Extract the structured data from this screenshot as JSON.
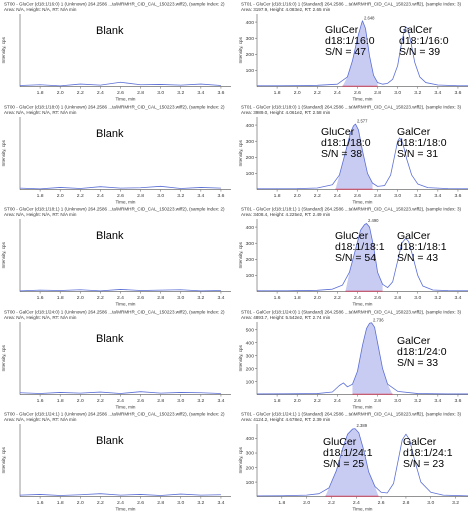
{
  "colors": {
    "trace": "#5b6fd6",
    "fill": "#c9ccf2",
    "baseline": "#e0405a",
    "axis": "#555555",
    "tick_label": "#333333"
  },
  "chart_data": [
    {
      "type": "line",
      "panel": "blank",
      "row": 0,
      "header_line1": "ST00 - GluCer (d18:1/16:0) 1 (Unknown) 264.2586 ...ta\\MRMHR_CID_CAL_150223.wiff2), (sample Index: 2)",
      "header_line2": "Area: N/A, Height: N/A, RT: N/A min",
      "xlabel": "Time, min",
      "ylabel": "Intensity, cps",
      "xlim": [
        1.6,
        3.7
      ],
      "ylim": [
        0,
        1000
      ],
      "xticks": [
        1.8,
        2.0,
        2.2,
        2.4,
        2.6,
        2.8,
        3.0,
        3.2,
        3.4,
        3.6
      ],
      "yticks": [],
      "blank_text": "Blank",
      "x": [
        1.6,
        1.8,
        2.0,
        2.2,
        2.4,
        2.6,
        2.8,
        3.0,
        3.2,
        3.4,
        3.6
      ],
      "y": [
        15,
        25,
        10,
        35,
        20,
        60,
        25,
        30,
        20,
        35,
        15
      ],
      "peaks": []
    },
    {
      "type": "line",
      "panel": "sample",
      "row": 0,
      "header_line1": "ST01 - GluCer (d18:1/16:0) 1 (Standard) 264.2586 ...ta\\MRMHR_CID_CAL_150223.wiff2), (sample Index: 3)",
      "header_line2": "Area: 3197.9, Height: 4.083e2, RT: 2.65 min",
      "xlabel": "Time, min",
      "ylabel": "Intensity, cps",
      "xlim": [
        1.6,
        3.7
      ],
      "ylim": [
        0,
        450
      ],
      "xticks": [
        1.8,
        2.0,
        2.2,
        2.4,
        2.6,
        2.8,
        3.0,
        3.2,
        3.4,
        3.6
      ],
      "yticks": [
        100,
        200,
        300,
        400
      ],
      "x": [
        1.6,
        1.8,
        2.0,
        2.2,
        2.4,
        2.5,
        2.55,
        2.6,
        2.64,
        2.65,
        2.68,
        2.72,
        2.76,
        2.8,
        2.85,
        2.9,
        2.95,
        3.0,
        3.03,
        3.06,
        3.08,
        3.1,
        3.13,
        3.17,
        3.22,
        3.28,
        3.4,
        3.6,
        3.7
      ],
      "y": [
        5,
        5,
        6,
        8,
        15,
        60,
        160,
        300,
        390,
        408,
        360,
        190,
        70,
        25,
        15,
        20,
        45,
        130,
        240,
        330,
        370,
        360,
        280,
        150,
        60,
        25,
        10,
        5,
        5
      ],
      "fill_range": [
        2.45,
        2.8
      ],
      "peaks": [
        {
          "x": 2.65,
          "y": 408,
          "label": "2.648"
        }
      ],
      "annotations": [
        {
          "lines": [
            "GluCer",
            "d18:1/16:0",
            "S/N = 47"
          ]
        },
        {
          "lines": [
            "GalCer",
            "d18:1/16:0",
            "S/N = 39"
          ]
        }
      ]
    },
    {
      "type": "line",
      "panel": "blank",
      "row": 1,
      "header_line1": "ST00 - GluCer (d18:1/18:0) 1 (Unknown) 264.2586 ...ta\\MRMHR_CID_CAL_150223.wiff2), (sample Index: 2)",
      "header_line2": "Area: N/A, Height: N/A, RT: N/A min",
      "xlabel": "Time, min",
      "ylabel": "Intensity, cps",
      "xlim": [
        1.6,
        3.7
      ],
      "ylim": [
        0,
        1000
      ],
      "xticks": [
        1.8,
        2.0,
        2.2,
        2.4,
        2.6,
        2.8,
        3.0,
        3.2,
        3.4,
        3.6
      ],
      "yticks": [],
      "blank_text": "Blank",
      "x": [
        1.6,
        1.8,
        2.0,
        2.2,
        2.4,
        2.6,
        2.8,
        3.0,
        3.2,
        3.4,
        3.6
      ],
      "y": [
        20,
        10,
        30,
        15,
        40,
        20,
        25,
        45,
        15,
        30,
        20
      ],
      "peaks": []
    },
    {
      "type": "line",
      "panel": "sample",
      "row": 1,
      "header_line1": "ST01 - GluCer (d18:1/18:0) 1 (Standard) 264.2586 ...ta\\MRMHR_CID_CAL_150223.wiff2), (sample Index: 3)",
      "header_line2": "Area: 3989.0, Height: 4.061e2, RT: 2.58 min",
      "xlabel": "Time, min",
      "ylabel": "Intensity, cps",
      "xlim": [
        1.6,
        3.7
      ],
      "ylim": [
        0,
        450
      ],
      "xticks": [
        1.8,
        2.0,
        2.2,
        2.4,
        2.6,
        2.8,
        3.0,
        3.2,
        3.4,
        3.6
      ],
      "yticks": [
        100,
        200,
        300,
        400
      ],
      "x": [
        1.6,
        1.8,
        2.0,
        2.2,
        2.35,
        2.42,
        2.48,
        2.53,
        2.56,
        2.58,
        2.61,
        2.65,
        2.7,
        2.75,
        2.8,
        2.87,
        2.93,
        2.97,
        3.0,
        3.02,
        3.05,
        3.09,
        3.14,
        3.2,
        3.3,
        3.5,
        3.7
      ],
      "y": [
        5,
        5,
        6,
        10,
        30,
        90,
        230,
        350,
        395,
        406,
        370,
        240,
        100,
        40,
        20,
        25,
        90,
        210,
        300,
        320,
        290,
        190,
        90,
        35,
        12,
        6,
        5
      ],
      "fill_range": [
        2.38,
        2.75
      ],
      "peaks": [
        {
          "x": 2.58,
          "y": 406,
          "label": "2.577"
        }
      ],
      "annotations": [
        {
          "lines": [
            "GluCer",
            "d18:1/18:0",
            "S/N = 38"
          ]
        },
        {
          "lines": [
            "GalCer",
            "d18:1/18:0",
            "S/N = 31"
          ]
        }
      ]
    },
    {
      "type": "line",
      "panel": "blank",
      "row": 2,
      "header_line1": "ST00 - GluCer (d18:1/18:1) 1 (Unknown) 264.2586 ...ta\\MRMHR_CID_CAL_150223.wiff2), (sample Index: 2)",
      "header_line2": "Area: N/A, Height: N/A, RT: N/A min",
      "xlabel": "Time, min",
      "ylabel": "Intensity, cps",
      "xlim": [
        1.4,
        3.5
      ],
      "ylim": [
        0,
        1000
      ],
      "xticks": [
        1.6,
        1.8,
        2.0,
        2.2,
        2.4,
        2.6,
        2.8,
        3.0,
        3.2,
        3.4
      ],
      "yticks": [],
      "blank_text": "Blank",
      "x": [
        1.4,
        1.6,
        1.8,
        2.0,
        2.2,
        2.4,
        2.6,
        2.8,
        3.0,
        3.2,
        3.4
      ],
      "y": [
        10,
        20,
        15,
        25,
        10,
        30,
        15,
        20,
        25,
        10,
        15
      ],
      "peaks": []
    },
    {
      "type": "line",
      "panel": "sample",
      "row": 2,
      "header_line1": "ST01 - GluCer (d18:1/18:1) 1 (Standard) 264.2586 ...ta\\MRMHR_CID_CAL_150223.wiff2), (sample Index: 3)",
      "header_line2": "Area: 3408.4, Height: 4.225e2, RT: 2.49 min",
      "xlabel": "Time, min",
      "ylabel": "Intensity, cps",
      "xlim": [
        1.4,
        3.5
      ],
      "ylim": [
        0,
        450
      ],
      "xticks": [
        1.6,
        1.8,
        2.0,
        2.2,
        2.4,
        2.6,
        2.8,
        3.0,
        3.2,
        3.4
      ],
      "yticks": [
        100,
        200,
        300,
        400
      ],
      "x": [
        1.4,
        1.7,
        2.0,
        2.15,
        2.25,
        2.32,
        2.38,
        2.43,
        2.47,
        2.49,
        2.52,
        2.56,
        2.6,
        2.65,
        2.7,
        2.75,
        2.8,
        2.84,
        2.88,
        2.91,
        2.95,
        3.0,
        3.05,
        3.15,
        3.3,
        3.5
      ],
      "y": [
        5,
        5,
        8,
        15,
        40,
        120,
        260,
        380,
        415,
        422,
        400,
        280,
        120,
        45,
        25,
        60,
        190,
        300,
        330,
        310,
        220,
        100,
        35,
        10,
        6,
        5
      ],
      "fill_range": [
        2.28,
        2.65
      ],
      "peaks": [
        {
          "x": 2.49,
          "y": 422,
          "label": "2.490"
        }
      ],
      "annotations": [
        {
          "lines": [
            "GluCer",
            "d18:1/18:1",
            "S/N = 54"
          ]
        },
        {
          "lines": [
            "GalCer",
            "d18:1/18:1",
            "S/N = 43"
          ]
        }
      ]
    },
    {
      "type": "line",
      "panel": "blank",
      "row": 3,
      "header_line1": "ST00 - GalCer (d18:1/24:0) 1 (Unknown) 264.2586 ...ta\\MRMHR_CID_CAL_150223.wiff2), (sample Index: 2)",
      "header_line2": "Area: N/A, Height: N/A, RT: N/A min",
      "xlabel": "Time, min",
      "ylabel": "Intensity, cps",
      "xlim": [
        1.4,
        3.5
      ],
      "ylim": [
        0,
        1000
      ],
      "xticks": [
        1.6,
        1.8,
        2.0,
        2.2,
        2.4,
        2.6,
        2.8,
        3.0,
        3.2,
        3.4
      ],
      "yticks": [],
      "blank_text": "Blank",
      "x": [
        1.4,
        1.6,
        1.8,
        2.0,
        2.2,
        2.4,
        2.6,
        2.8,
        3.0,
        3.2,
        3.4
      ],
      "y": [
        25,
        15,
        30,
        20,
        35,
        15,
        40,
        20,
        30,
        25,
        15
      ],
      "peaks": []
    },
    {
      "type": "line",
      "panel": "sample",
      "row": 3,
      "header_line1": "ST01 - GalCer (d18:1/24:0) 1 (Standard) 264.2586 ...ta\\MRMHR_CID_CAL_150223.wiff2), (sample Index: 3)",
      "header_line2": "Area: 4893.7, Height: 5.542e2, RT: 2.74 min",
      "xlabel": "Time, min",
      "ylabel": "Intensity, cps",
      "xlim": [
        1.6,
        3.7
      ],
      "ylim": [
        0,
        560
      ],
      "xticks": [
        1.8,
        2.0,
        2.2,
        2.4,
        2.6,
        2.8,
        3.0,
        3.2,
        3.4,
        3.6
      ],
      "yticks": [
        100,
        200,
        300,
        400,
        500
      ],
      "x": [
        1.6,
        1.9,
        2.2,
        2.35,
        2.42,
        2.46,
        2.5,
        2.55,
        2.6,
        2.65,
        2.69,
        2.72,
        2.74,
        2.77,
        2.8,
        2.85,
        2.9,
        3.0,
        3.2,
        3.5,
        3.7
      ],
      "y": [
        5,
        6,
        8,
        20,
        70,
        90,
        60,
        80,
        180,
        380,
        510,
        550,
        554,
        520,
        400,
        200,
        80,
        25,
        8,
        5,
        5
      ],
      "fill_range": [
        2.55,
        2.95
      ],
      "peaks": [
        {
          "x": 2.74,
          "y": 554,
          "label": "2.736"
        }
      ],
      "annotations": [
        {
          "lines": [
            "GalCer",
            "d18:1/24:0",
            "S/N = 33"
          ]
        }
      ]
    },
    {
      "type": "line",
      "panel": "blank",
      "row": 4,
      "header_line1": "ST00 - GluCer (d18:1/24:1) 1 (Unknown) 264.2586 ...ta\\MRMHR_CID_CAL_150223.wiff2), (sample Index: 2)",
      "header_line2": "Area: N/A, Height: N/A, RT: N/A min",
      "xlabel": "Time, min",
      "ylabel": "Intensity, cps",
      "xlim": [
        1.4,
        3.5
      ],
      "ylim": [
        0,
        1000
      ],
      "xticks": [
        1.6,
        1.8,
        2.0,
        2.2,
        2.4,
        2.6,
        2.8,
        3.0,
        3.2,
        3.4
      ],
      "yticks": [],
      "blank_text": "Blank",
      "x": [
        1.4,
        1.6,
        1.8,
        2.0,
        2.2,
        2.4,
        2.6,
        2.8,
        3.0,
        3.2,
        3.4
      ],
      "y": [
        20,
        30,
        15,
        25,
        40,
        20,
        30,
        15,
        35,
        20,
        25
      ],
      "peaks": []
    },
    {
      "type": "line",
      "panel": "sample",
      "row": 4,
      "header_line1": "ST01 - GluCer (d18:1/24:1) 1 (Standard) 264.2586 ...ta\\MRMHR_CID_CAL_150223.wiff2), (sample Index: 3)",
      "header_line2": "Area: 4124.2, Height: 4.678e2, RT: 2.39 min",
      "xlabel": "Time, min",
      "ylabel": "Intensity, cps",
      "xlim": [
        1.6,
        3.3
      ],
      "ylim": [
        0,
        500
      ],
      "xticks": [
        1.8,
        2.0,
        2.2,
        2.4,
        2.6,
        2.8,
        3.0,
        3.2
      ],
      "yticks": [
        100,
        200,
        300,
        400
      ],
      "x": [
        1.6,
        1.8,
        2.0,
        2.1,
        2.18,
        2.24,
        2.29,
        2.33,
        2.37,
        2.39,
        2.42,
        2.46,
        2.5,
        2.55,
        2.6,
        2.65,
        2.7,
        2.74,
        2.77,
        2.8,
        2.83,
        2.87,
        2.92,
        3.0,
        3.1,
        3.3
      ],
      "y": [
        5,
        6,
        10,
        20,
        60,
        180,
        330,
        430,
        465,
        468,
        440,
        320,
        170,
        70,
        30,
        25,
        90,
        260,
        390,
        430,
        390,
        250,
        100,
        30,
        10,
        5
      ],
      "fill_range": [
        2.15,
        2.58
      ],
      "peaks": [
        {
          "x": 2.39,
          "y": 468,
          "label": "2.389"
        }
      ],
      "annotations": [
        {
          "lines": [
            "GluCer",
            "d18:1/24:1",
            "S/N = 25"
          ]
        },
        {
          "lines": [
            "GalCer",
            "d18:1/24:1",
            "S/N = 23"
          ]
        }
      ]
    }
  ]
}
